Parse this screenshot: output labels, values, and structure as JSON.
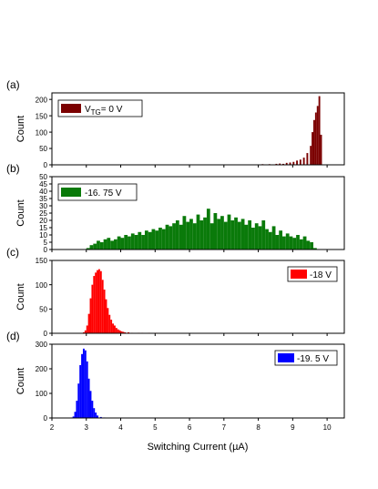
{
  "chart_data": [
    {
      "type": "bar",
      "panel_label": "(a)",
      "legend": {
        "text_main": "V",
        "text_sub": "TG",
        "text_tail": "= 0 V",
        "color": "#7b0000",
        "placement": "top-left"
      },
      "ylabel": "Count",
      "ylim": [
        0,
        220
      ],
      "yticks": [
        0,
        50,
        100,
        150,
        200
      ],
      "series": [
        {
          "bins": [
            [
              7.8,
              1
            ],
            [
              7.9,
              1
            ],
            [
              8.0,
              1
            ],
            [
              8.1,
              2
            ],
            [
              8.2,
              1
            ],
            [
              8.3,
              2
            ],
            [
              8.4,
              1
            ],
            [
              8.5,
              3
            ],
            [
              8.6,
              4
            ],
            [
              8.7,
              3
            ],
            [
              8.8,
              6
            ],
            [
              8.9,
              7
            ],
            [
              9.0,
              9
            ],
            [
              9.1,
              13
            ],
            [
              9.2,
              16
            ],
            [
              9.3,
              22
            ],
            [
              9.4,
              36
            ],
            [
              9.5,
              58
            ],
            [
              9.55,
              100
            ],
            [
              9.6,
              137
            ],
            [
              9.65,
              160
            ],
            [
              9.7,
              180
            ],
            [
              9.75,
              210
            ],
            [
              9.8,
              92
            ]
          ]
        }
      ]
    },
    {
      "type": "bar",
      "panel_label": "(b)",
      "legend": {
        "text": "-16. 75 V",
        "color": "#0a7a0a",
        "placement": "top-left"
      },
      "ylabel": "Count",
      "ylim": [
        0,
        50
      ],
      "yticks": [
        0,
        5,
        10,
        15,
        20,
        25,
        30,
        35,
        40,
        45,
        50
      ],
      "series": [
        {
          "bins": [
            [
              3.0,
              1
            ],
            [
              3.1,
              3
            ],
            [
              3.2,
              4
            ],
            [
              3.3,
              6
            ],
            [
              3.4,
              5
            ],
            [
              3.5,
              7
            ],
            [
              3.6,
              8
            ],
            [
              3.7,
              6
            ],
            [
              3.8,
              7
            ],
            [
              3.9,
              9
            ],
            [
              4.0,
              8
            ],
            [
              4.1,
              10
            ],
            [
              4.2,
              9
            ],
            [
              4.3,
              11
            ],
            [
              4.4,
              10
            ],
            [
              4.5,
              12
            ],
            [
              4.6,
              10
            ],
            [
              4.7,
              13
            ],
            [
              4.8,
              12
            ],
            [
              4.9,
              14
            ],
            [
              5.0,
              13
            ],
            [
              5.1,
              15
            ],
            [
              5.2,
              14
            ],
            [
              5.3,
              17
            ],
            [
              5.4,
              16
            ],
            [
              5.5,
              18
            ],
            [
              5.6,
              20
            ],
            [
              5.7,
              17
            ],
            [
              5.8,
              23
            ],
            [
              5.9,
              19
            ],
            [
              6.0,
              21
            ],
            [
              6.1,
              18
            ],
            [
              6.2,
              24
            ],
            [
              6.3,
              20
            ],
            [
              6.4,
              22
            ],
            [
              6.5,
              28
            ],
            [
              6.6,
              18
            ],
            [
              6.7,
              25
            ],
            [
              6.8,
              21
            ],
            [
              6.9,
              23
            ],
            [
              7.0,
              19
            ],
            [
              7.1,
              24
            ],
            [
              7.2,
              20
            ],
            [
              7.3,
              22
            ],
            [
              7.4,
              19
            ],
            [
              7.5,
              21
            ],
            [
              7.6,
              17
            ],
            [
              7.7,
              20
            ],
            [
              7.8,
              15
            ],
            [
              7.9,
              18
            ],
            [
              8.0,
              16
            ],
            [
              8.1,
              20
            ],
            [
              8.2,
              14
            ],
            [
              8.3,
              12
            ],
            [
              8.4,
              16
            ],
            [
              8.5,
              10
            ],
            [
              8.6,
              13
            ],
            [
              8.7,
              9
            ],
            [
              8.8,
              11
            ],
            [
              8.9,
              9
            ],
            [
              9.0,
              8
            ],
            [
              9.1,
              10
            ],
            [
              9.2,
              7
            ],
            [
              9.3,
              9
            ],
            [
              9.4,
              6
            ],
            [
              9.5,
              5
            ],
            [
              9.6,
              1
            ]
          ]
        }
      ]
    },
    {
      "type": "bar",
      "panel_label": "(c)",
      "legend": {
        "text": "-18 V",
        "color": "#ff0000",
        "placement": "top-right"
      },
      "ylabel": "Count",
      "ylim": [
        0,
        150
      ],
      "yticks": [
        0,
        50,
        100,
        150
      ],
      "series": [
        {
          "bins": [
            [
              2.9,
              2
            ],
            [
              2.95,
              6
            ],
            [
              3.0,
              16
            ],
            [
              3.05,
              40
            ],
            [
              3.1,
              72
            ],
            [
              3.15,
              100
            ],
            [
              3.2,
              118
            ],
            [
              3.25,
              125
            ],
            [
              3.3,
              130
            ],
            [
              3.35,
              132
            ],
            [
              3.4,
              128
            ],
            [
              3.45,
              110
            ],
            [
              3.5,
              90
            ],
            [
              3.55,
              70
            ],
            [
              3.6,
              52
            ],
            [
              3.65,
              38
            ],
            [
              3.7,
              28
            ],
            [
              3.75,
              20
            ],
            [
              3.8,
              16
            ],
            [
              3.85,
              11
            ],
            [
              3.9,
              8
            ],
            [
              3.95,
              6
            ],
            [
              4.0,
              4
            ],
            [
              4.05,
              3
            ],
            [
              4.1,
              2
            ],
            [
              4.2,
              2
            ],
            [
              4.3,
              1
            ],
            [
              4.5,
              1
            ],
            [
              4.6,
              1
            ],
            [
              4.8,
              1
            ],
            [
              5.0,
              1
            ]
          ]
        }
      ]
    },
    {
      "type": "bar",
      "panel_label": "(d)",
      "legend": {
        "text": "-19. 5 V",
        "color": "#0000ff",
        "placement": "top-right"
      },
      "ylabel": "Count",
      "xlabel": "Switching Current (µA)",
      "ylim": [
        0,
        300
      ],
      "yticks": [
        0,
        100,
        200,
        300
      ],
      "xlim": [
        2,
        10.5
      ],
      "xticks": [
        2,
        3,
        4,
        5,
        6,
        7,
        8,
        9,
        10
      ],
      "series": [
        {
          "bins": [
            [
              2.55,
              2
            ],
            [
              2.6,
              6
            ],
            [
              2.65,
              25
            ],
            [
              2.7,
              70
            ],
            [
              2.75,
              140
            ],
            [
              2.8,
              215
            ],
            [
              2.85,
              260
            ],
            [
              2.9,
              282
            ],
            [
              2.95,
              275
            ],
            [
              3.0,
              230
            ],
            [
              3.05,
              160
            ],
            [
              3.1,
              110
            ],
            [
              3.15,
              70
            ],
            [
              3.2,
              40
            ],
            [
              3.25,
              22
            ],
            [
              3.3,
              10
            ],
            [
              3.4,
              4
            ],
            [
              3.5,
              2
            ]
          ]
        }
      ]
    }
  ]
}
